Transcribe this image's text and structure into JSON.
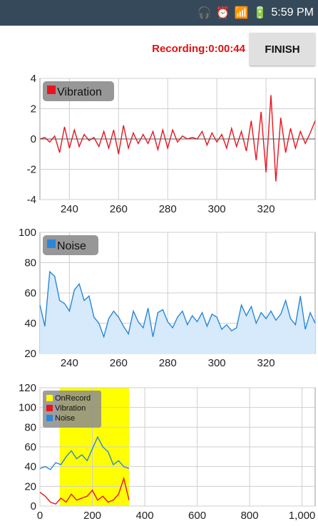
{
  "status_bar": {
    "icons": [
      "headphones-icon",
      "alarm-icon",
      "signal-icon",
      "battery-icon"
    ],
    "time": "5:59 PM"
  },
  "toolbar": {
    "recording_label": "Recording:0:00:44",
    "finish_label": "FINISH"
  },
  "colors": {
    "vibration": "#e8141e",
    "noise": "#2a86d8",
    "noise_fill": "#d6eafb",
    "onrecord": "#ffff00",
    "recording_text": "#e01010",
    "legend_bg": "#8c8c8c"
  },
  "chart_data": [
    {
      "type": "line",
      "legend": [
        "Vibration"
      ],
      "x_ticks": [
        "240",
        "260",
        "280",
        "300",
        "320"
      ],
      "y_ticks": [
        "4",
        "2",
        "0",
        "-2",
        "-4"
      ],
      "xlim": [
        228,
        340
      ],
      "ylim": [
        -4,
        4
      ],
      "grid": true,
      "legend_position": "top-left",
      "series": [
        {
          "name": "Vibration",
          "x": [
            228,
            230,
            232,
            234,
            236,
            238,
            240,
            242,
            244,
            246,
            248,
            250,
            252,
            254,
            256,
            258,
            260,
            262,
            264,
            266,
            268,
            270,
            272,
            274,
            276,
            278,
            280,
            282,
            284,
            286,
            288,
            290,
            292,
            294,
            296,
            298,
            300,
            302,
            304,
            306,
            308,
            310,
            312,
            314,
            316,
            318,
            320,
            322,
            324,
            326,
            328,
            330,
            332,
            334,
            336,
            338,
            340
          ],
          "y": [
            0,
            0.1,
            -0.2,
            0.2,
            -0.9,
            0.8,
            -0.6,
            0.6,
            -0.5,
            0.3,
            -0.1,
            0.1,
            -0.5,
            0.5,
            -0.6,
            0.6,
            -1.0,
            0.9,
            -0.6,
            0.4,
            -0.3,
            0.3,
            -0.3,
            0.5,
            -0.7,
            0.6,
            -0.6,
            0.6,
            -0.2,
            0.2,
            0,
            0.1,
            0,
            0.5,
            -0.4,
            0.4,
            -0.2,
            0.3,
            -0.6,
            0.7,
            -0.5,
            0.5,
            -0.8,
            1.2,
            -1.4,
            1.8,
            -2.2,
            2.9,
            -2.8,
            1.4,
            -0.9,
            0.7,
            -0.6,
            0.5,
            -0.3,
            0.4,
            1.2
          ]
        }
      ]
    },
    {
      "type": "area",
      "legend": [
        "Noise"
      ],
      "x_ticks": [
        "240",
        "260",
        "280",
        "300",
        "320"
      ],
      "y_ticks": [
        "100",
        "80",
        "60",
        "40",
        "20"
      ],
      "xlim": [
        228,
        340
      ],
      "ylim": [
        20,
        100
      ],
      "grid": true,
      "legend_position": "top-left",
      "series": [
        {
          "name": "Noise",
          "x": [
            228,
            230,
            232,
            234,
            236,
            238,
            240,
            242,
            244,
            246,
            248,
            250,
            252,
            254,
            256,
            258,
            260,
            262,
            264,
            266,
            268,
            270,
            272,
            274,
            276,
            278,
            280,
            282,
            284,
            286,
            288,
            290,
            292,
            294,
            296,
            298,
            300,
            302,
            304,
            306,
            308,
            310,
            312,
            314,
            316,
            318,
            320,
            322,
            324,
            326,
            328,
            330,
            332,
            334,
            336,
            338,
            340
          ],
          "y": [
            52,
            38,
            74,
            71,
            55,
            53,
            48,
            62,
            66,
            55,
            58,
            44,
            40,
            31,
            43,
            48,
            44,
            38,
            33,
            48,
            41,
            37,
            50,
            31,
            47,
            49,
            41,
            37,
            44,
            48,
            39,
            45,
            41,
            47,
            38,
            46,
            44,
            36,
            39,
            35,
            37,
            52,
            45,
            51,
            40,
            47,
            43,
            48,
            42,
            46,
            55,
            43,
            39,
            58,
            36,
            47,
            40
          ]
        }
      ]
    },
    {
      "type": "line",
      "legend": [
        "OnRecord",
        "Vibration",
        "Noise"
      ],
      "x_ticks": [
        "0",
        "200",
        "400",
        "600",
        "800",
        "1,000"
      ],
      "y_ticks": [
        "120",
        "100",
        "80",
        "60",
        "40",
        "20",
        "0"
      ],
      "xlim": [
        0,
        1050
      ],
      "ylim": [
        0,
        120
      ],
      "grid": true,
      "legend_position": "top-left",
      "onrecord_span": [
        75,
        340
      ],
      "series": [
        {
          "name": "Noise",
          "x": [
            0,
            20,
            40,
            60,
            80,
            100,
            120,
            140,
            160,
            180,
            200,
            220,
            240,
            260,
            280,
            300,
            320,
            340
          ],
          "y": [
            38,
            40,
            37,
            44,
            42,
            50,
            56,
            48,
            52,
            46,
            58,
            70,
            60,
            55,
            42,
            46,
            40,
            38
          ]
        },
        {
          "name": "Vibration",
          "x": [
            0,
            20,
            40,
            60,
            80,
            100,
            120,
            140,
            160,
            180,
            200,
            220,
            240,
            260,
            280,
            300,
            320,
            340
          ],
          "y": [
            14,
            10,
            4,
            2,
            8,
            4,
            12,
            6,
            8,
            10,
            16,
            6,
            10,
            4,
            6,
            12,
            28,
            6
          ]
        }
      ]
    }
  ]
}
